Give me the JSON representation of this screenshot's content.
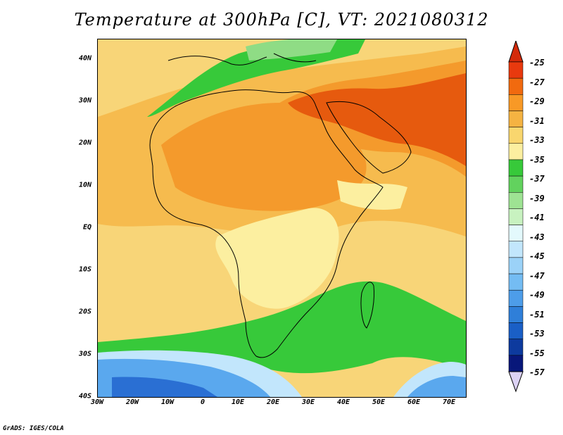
{
  "title": "Temperature at 300hPa [C], VT: 2021080312",
  "credit": "GrADS: IGES/COLA",
  "lat_labels": [
    "40N",
    "30N",
    "20N",
    "10N",
    "EQ",
    "10S",
    "20S",
    "30S",
    "40S"
  ],
  "lon_labels": [
    "30W",
    "20W",
    "10W",
    "0",
    "10E",
    "20E",
    "30E",
    "40E",
    "50E",
    "60E",
    "70E"
  ],
  "colorbar": {
    "labels": [
      "-25",
      "-27",
      "-29",
      "-31",
      "-33",
      "-35",
      "-37",
      "-39",
      "-41",
      "-43",
      "-45",
      "-47",
      "-49",
      "-51",
      "-53",
      "-55",
      "-57"
    ],
    "colors": [
      "#e8390e",
      "#f16a0f",
      "#f89926",
      "#f5b342",
      "#f9d66e",
      "#fcefa0",
      "#37c93a",
      "#62d25e",
      "#9ee393",
      "#c8f2c0",
      "#e3f9fc",
      "#c2e6fc",
      "#9bd2f8",
      "#74bcf3",
      "#4d9de9",
      "#2f7fd9",
      "#1a5fc6",
      "#0d3a9e",
      "#08177a"
    ],
    "top_triangle_color": "#d42a0a",
    "bottom_triangle_color": "#dcd2f4"
  },
  "map_colors": {
    "ocean_base": "#f8d578",
    "warm_core": "#e65a0e",
    "warm": "#f49a2c",
    "mid": "#f6bb4e",
    "pale": "#fcefa0",
    "green": "#37c93a",
    "green_light": "#8fdc85",
    "blue_pale": "#c2e6fc",
    "blue": "#5aa8ee",
    "blue_deep": "#2a6fd3"
  }
}
